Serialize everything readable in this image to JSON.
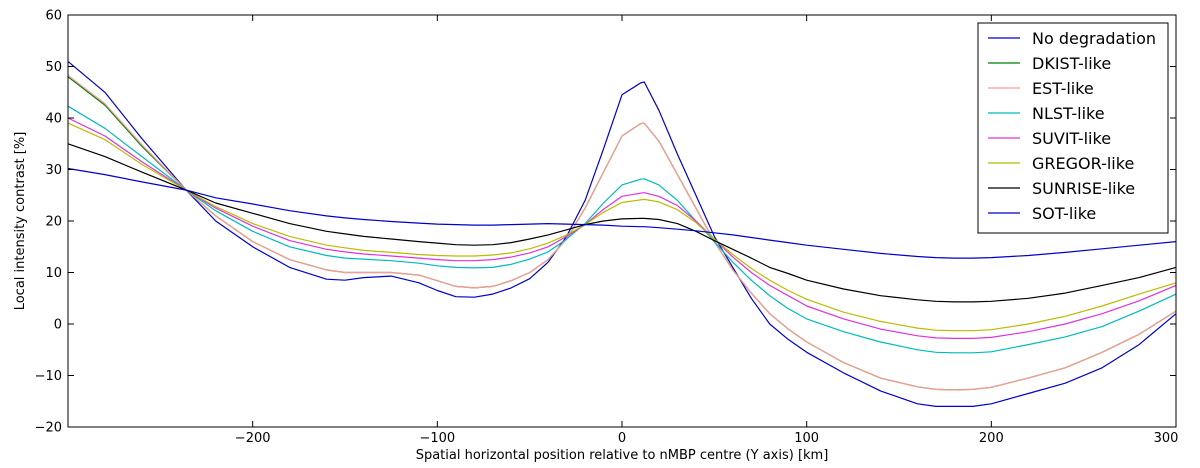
{
  "chart_data": {
    "type": "line",
    "xlabel": "Spatial horizontal position relative to nMBP centre (Y axis) [km]",
    "ylabel": "Local intensity contrast [%]",
    "xlim": [
      -300,
      300
    ],
    "ylim": [
      -20,
      60
    ],
    "xticks": [
      -200,
      -100,
      0,
      100,
      200,
      300
    ],
    "yticks": [
      -20,
      -10,
      0,
      10,
      20,
      30,
      40,
      50,
      60
    ],
    "xtick_labels": [
      "−200",
      "−100",
      "0",
      "100",
      "200",
      "300"
    ],
    "ytick_labels": [
      "−20",
      "−10",
      "0",
      "10",
      "20",
      "30",
      "40",
      "50",
      "60"
    ],
    "grid": false,
    "legend_position": "top-right",
    "x": [
      -300,
      -280,
      -260,
      -236,
      -220,
      -200,
      -180,
      -160,
      -150,
      -140,
      -125,
      -110,
      -100,
      -90,
      -80,
      -70,
      -60,
      -50,
      -40,
      -30,
      -20,
      -10,
      0,
      10,
      12,
      20,
      30,
      40,
      50,
      60,
      70,
      80,
      90,
      100,
      120,
      140,
      160,
      170,
      180,
      190,
      200,
      220,
      240,
      260,
      280,
      300
    ],
    "series": [
      {
        "name": "No degradation",
        "color": "#0000cc",
        "values": [
          51.0,
          45.0,
          36.0,
          26.0,
          20.0,
          15.0,
          11.0,
          8.7,
          8.5,
          9.0,
          9.3,
          8.0,
          6.5,
          5.3,
          5.2,
          5.8,
          7.0,
          8.8,
          12.0,
          17.0,
          24.0,
          34.0,
          44.5,
          46.8,
          47.0,
          41.5,
          33.0,
          25.0,
          17.0,
          11.0,
          5.0,
          0.0,
          -3.0,
          -5.5,
          -9.5,
          -13.0,
          -15.5,
          -16.0,
          -16.0,
          -16.0,
          -15.5,
          -13.5,
          -11.5,
          -8.5,
          -4.0,
          2.0
        ]
      },
      {
        "name": "DKIST-like",
        "color": "#008000",
        "values": [
          48.0,
          42.5,
          34.5,
          26.0,
          21.0,
          16.0,
          12.5,
          10.5,
          10.0,
          10.0,
          10.0,
          9.5,
          8.4,
          7.3,
          7.0,
          7.3,
          8.4,
          10.0,
          12.5,
          16.5,
          22.5,
          29.5,
          36.5,
          38.9,
          39.0,
          35.5,
          29.0,
          22.5,
          16.0,
          10.5,
          6.0,
          2.0,
          -1.0,
          -3.5,
          -7.5,
          -10.5,
          -12.2,
          -12.7,
          -12.8,
          -12.7,
          -12.3,
          -10.5,
          -8.5,
          -5.5,
          -2.0,
          2.5
        ]
      },
      {
        "name": "EST-like",
        "color": "#ff9999",
        "values": [
          48.3,
          42.8,
          34.8,
          26.0,
          21.0,
          16.0,
          12.5,
          10.5,
          10.0,
          10.0,
          10.0,
          9.5,
          8.4,
          7.3,
          7.0,
          7.3,
          8.4,
          10.0,
          12.5,
          16.5,
          22.5,
          29.5,
          36.5,
          38.9,
          39.0,
          35.5,
          29.0,
          22.5,
          16.0,
          10.5,
          6.0,
          2.0,
          -1.0,
          -3.5,
          -7.5,
          -10.5,
          -12.2,
          -12.7,
          -12.8,
          -12.7,
          -12.3,
          -10.5,
          -8.5,
          -5.5,
          -2.0,
          2.5
        ]
      },
      {
        "name": "NLST-like",
        "color": "#00bbbb",
        "values": [
          42.3,
          38.0,
          32.5,
          26.0,
          22.0,
          18.0,
          15.0,
          13.3,
          12.8,
          12.6,
          12.3,
          11.8,
          11.3,
          11.0,
          10.9,
          11.0,
          11.6,
          12.6,
          14.0,
          16.5,
          19.5,
          23.5,
          27.0,
          28.1,
          28.2,
          27.0,
          24.0,
          20.0,
          16.0,
          12.0,
          8.5,
          5.5,
          3.0,
          1.0,
          -1.5,
          -3.5,
          -5.0,
          -5.5,
          -5.6,
          -5.6,
          -5.4,
          -4.0,
          -2.5,
          -0.5,
          2.5,
          5.8
        ]
      },
      {
        "name": "SUVIT-like",
        "color": "#dd33dd",
        "values": [
          40.0,
          36.5,
          31.5,
          26.0,
          22.5,
          19.0,
          16.2,
          14.5,
          14.0,
          13.6,
          13.2,
          12.8,
          12.5,
          12.3,
          12.3,
          12.5,
          13.0,
          13.8,
          15.0,
          17.0,
          19.3,
          22.3,
          24.8,
          25.4,
          25.5,
          24.8,
          23.0,
          20.0,
          16.5,
          13.0,
          10.0,
          7.5,
          5.5,
          3.5,
          1.0,
          -1.0,
          -2.3,
          -2.7,
          -2.8,
          -2.8,
          -2.6,
          -1.5,
          0.0,
          2.0,
          4.5,
          7.5
        ]
      },
      {
        "name": "GREGOR-like",
        "color": "#bbbb00",
        "values": [
          39.0,
          35.8,
          31.0,
          26.0,
          22.8,
          19.5,
          17.0,
          15.3,
          14.8,
          14.3,
          13.9,
          13.5,
          13.3,
          13.2,
          13.2,
          13.4,
          13.8,
          14.6,
          15.7,
          17.3,
          19.3,
          21.7,
          23.6,
          24.1,
          24.2,
          23.7,
          22.2,
          19.7,
          16.5,
          13.5,
          10.8,
          8.5,
          6.5,
          4.8,
          2.3,
          0.5,
          -0.8,
          -1.2,
          -1.3,
          -1.3,
          -1.1,
          0.0,
          1.5,
          3.5,
          5.8,
          8.0
        ]
      },
      {
        "name": "SUNRISE-like",
        "color": "#000000",
        "values": [
          35.0,
          32.5,
          29.5,
          26.0,
          23.5,
          21.5,
          19.5,
          18.0,
          17.5,
          17.0,
          16.5,
          16.0,
          15.7,
          15.4,
          15.3,
          15.4,
          15.8,
          16.5,
          17.3,
          18.3,
          19.3,
          20.0,
          20.4,
          20.5,
          20.5,
          20.3,
          19.5,
          18.0,
          16.2,
          14.5,
          12.8,
          11.0,
          9.8,
          8.5,
          6.8,
          5.5,
          4.7,
          4.4,
          4.3,
          4.3,
          4.4,
          5.0,
          6.0,
          7.5,
          9.0,
          11.0
        ]
      },
      {
        "name": "SOT-like",
        "color": "#0000cc",
        "values": [
          30.2,
          29.0,
          27.6,
          26.0,
          24.5,
          23.3,
          22.0,
          21.0,
          20.6,
          20.3,
          19.9,
          19.6,
          19.4,
          19.3,
          19.2,
          19.2,
          19.3,
          19.4,
          19.5,
          19.4,
          19.3,
          19.2,
          19.0,
          18.9,
          18.9,
          18.7,
          18.4,
          18.1,
          17.7,
          17.3,
          16.8,
          16.3,
          15.8,
          15.3,
          14.5,
          13.7,
          13.1,
          12.9,
          12.8,
          12.8,
          12.9,
          13.3,
          13.9,
          14.6,
          15.3,
          16.0
        ]
      }
    ]
  }
}
